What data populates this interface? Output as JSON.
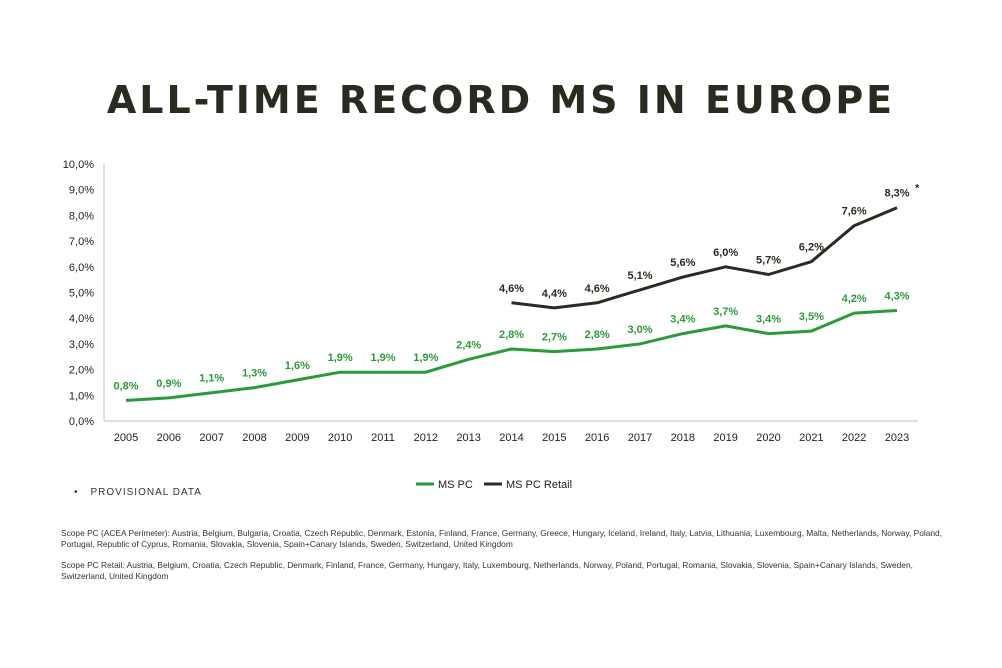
{
  "title": "ALL-TIME RECORD MS IN EUROPE",
  "note": {
    "bullet": "•",
    "text": "PROVISIONAL DATA"
  },
  "scope_pc": "Scope PC (ACEA Perimeter): Austria, Belgium, Bulgaria, Croatia, Czech Republic, Denmark, Estonia, Finland, France, Germany, Greece, Hungary, Iceland, Ireland, Italy, Latvia, Lithuania, Luxembourg, Malta, Netherlands, Norway, Poland, Portugal, Republic of Cyprus, Romania, Slovakia, Slovenia, Spain+Canary Islands, Sweden, Switzerland, United Kingdom",
  "scope_pc_retail": "Scope PC Retail: Austria, Belgium, Croatia, Czech Republic, Denmark, Finland, France, Germany, Hungary, Italy, Luxembourg, Netherlands, Norway, Poland, Portugal, Romania, Slovakia, Slovenia, Spain+Canary Islands, Sweden, Switzerland, United Kingdom",
  "chart_data": {
    "type": "line",
    "title": "ALL-TIME RECORD MS IN EUROPE",
    "xlabel": "",
    "ylabel": "",
    "ylim": [
      0,
      10
    ],
    "ytick_step": 1,
    "ytick_labels": [
      "0,0%",
      "1,0%",
      "2,0%",
      "3,0%",
      "4,0%",
      "5,0%",
      "6,0%",
      "7,0%",
      "8,0%",
      "9,0%",
      "10,0%"
    ],
    "grid": false,
    "legend_position": "bottom-center",
    "categories": [
      "2005",
      "2006",
      "2007",
      "2008",
      "2009",
      "2010",
      "2011",
      "2012",
      "2013",
      "2014",
      "2015",
      "2016",
      "2017",
      "2018",
      "2019",
      "2020",
      "2021",
      "2022",
      "2023"
    ],
    "series": [
      {
        "name": "MS PC",
        "color": "#2a9a3a",
        "values": [
          0.8,
          0.9,
          1.1,
          1.3,
          1.6,
          1.9,
          1.9,
          1.9,
          2.4,
          2.8,
          2.7,
          2.8,
          3.0,
          3.4,
          3.7,
          3.4,
          3.5,
          4.2,
          4.3
        ],
        "labels": [
          "0,8%",
          "0,9%",
          "1,1%",
          "1,3%",
          "1,6%",
          "1,9%",
          "1,9%",
          "1,9%",
          "2,4%",
          "2,8%",
          "2,7%",
          "2,8%",
          "3,0%",
          "3,4%",
          "3,7%",
          "3,4%",
          "3,5%",
          "4,2%",
          "4,3%"
        ]
      },
      {
        "name": "MS PC Retail",
        "color": "#2b2b22",
        "values": [
          null,
          null,
          null,
          null,
          null,
          null,
          null,
          null,
          null,
          4.6,
          4.4,
          4.6,
          5.1,
          5.6,
          6.0,
          5.7,
          6.2,
          7.6,
          8.3
        ],
        "labels": [
          null,
          null,
          null,
          null,
          null,
          null,
          null,
          null,
          null,
          "4,6%",
          "4,4%",
          "4,6%",
          "5,1%",
          "5,6%",
          "6,0%",
          "5,7%",
          "6,2%",
          "7,6%",
          "8,3%"
        ]
      }
    ],
    "annotations": [
      {
        "category": "2023",
        "series": "MS PC Retail",
        "text": "*"
      }
    ]
  }
}
